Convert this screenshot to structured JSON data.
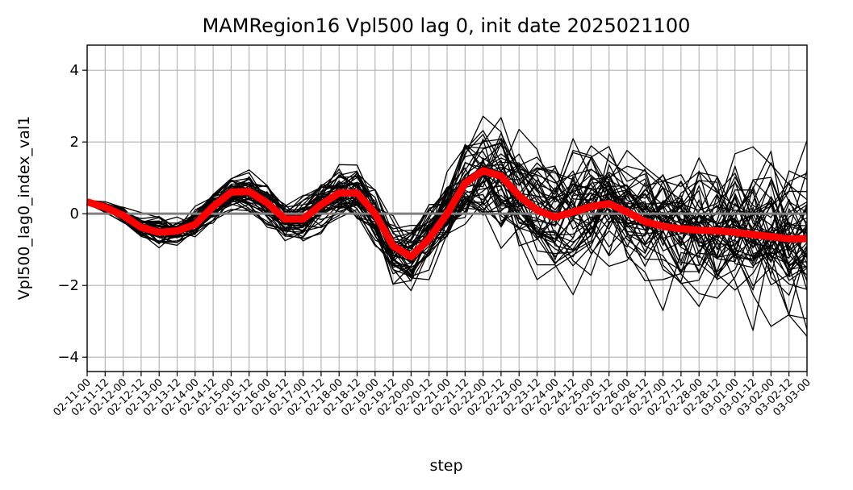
{
  "chart_data": {
    "type": "line",
    "title": "MAMRegion16 Vpl500 lag 0, init date 2025021100",
    "xlabel": "step",
    "ylabel": "Vpl500_lag0_index_val1",
    "ylim": [
      -4.4,
      4.7
    ],
    "yticks": [
      -4,
      -2,
      0,
      2,
      4
    ],
    "ytick_labels": [
      "−4",
      "−2",
      "0",
      "2",
      "4"
    ],
    "grid": true,
    "reference_line": 0,
    "categories": [
      "02-11-00",
      "02-11-12",
      "02-12-00",
      "02-12-12",
      "02-13-00",
      "02-13-12",
      "02-14-00",
      "02-14-12",
      "02-15-00",
      "02-15-12",
      "02-16-00",
      "02-16-12",
      "02-17-00",
      "02-17-12",
      "02-18-00",
      "02-18-12",
      "02-19-00",
      "02-19-12",
      "02-20-00",
      "02-20-12",
      "02-21-00",
      "02-21-12",
      "02-22-00",
      "02-22-12",
      "02-23-00",
      "02-23-12",
      "02-24-00",
      "02-24-12",
      "02-25-00",
      "02-25-12",
      "02-26-00",
      "02-26-12",
      "02-27-00",
      "02-27-12",
      "02-28-00",
      "02-28-12",
      "03-01-00",
      "03-01-12",
      "03-02-00",
      "03-02-12",
      "03-03-00"
    ],
    "ensemble_mean": [
      0.33,
      0.18,
      -0.05,
      -0.38,
      -0.52,
      -0.48,
      -0.3,
      0.2,
      0.6,
      0.62,
      0.3,
      -0.15,
      -0.15,
      0.25,
      0.58,
      0.58,
      0.0,
      -0.9,
      -1.2,
      -0.7,
      0.0,
      0.85,
      1.2,
      1.05,
      0.5,
      0.1,
      -0.1,
      0.05,
      0.2,
      0.28,
      0.05,
      -0.22,
      -0.35,
      -0.42,
      -0.46,
      -0.48,
      -0.52,
      -0.58,
      -0.64,
      -0.7,
      -0.7
    ],
    "ensemble_members_approx": 50,
    "colors": {
      "members": "#000000",
      "mean": "#ff0000",
      "reference": "#808080",
      "grid": "#b0b0b0"
    }
  }
}
